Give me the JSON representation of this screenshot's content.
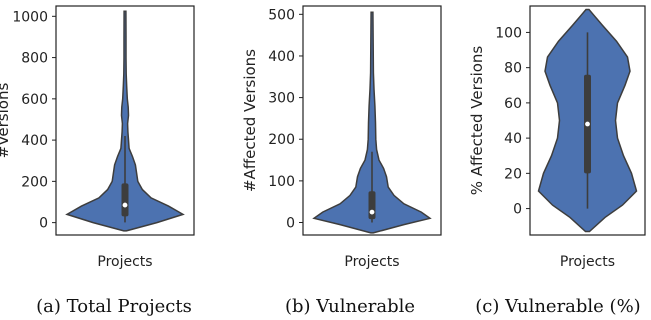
{
  "chart_data": [
    {
      "type": "violin",
      "caption": "(a) Total Projects",
      "xlabel": "Projects",
      "ylabel": "#Versions",
      "ylim": [
        -60,
        1050
      ],
      "yticks": [
        0,
        200,
        400,
        600,
        800,
        1000
      ],
      "range": [
        1,
        1025
      ],
      "box": {
        "q1": 30,
        "median": 85,
        "q3": 190,
        "whisker_low": 1,
        "whisker_high": 420
      },
      "density": [
        [
          -40,
          0.02
        ],
        [
          0,
          0.55
        ],
        [
          40,
          1.0
        ],
        [
          80,
          0.75
        ],
        [
          120,
          0.45
        ],
        [
          160,
          0.3
        ],
        [
          200,
          0.22
        ],
        [
          240,
          0.2
        ],
        [
          280,
          0.18
        ],
        [
          320,
          0.13
        ],
        [
          360,
          0.07
        ],
        [
          400,
          0.06
        ],
        [
          440,
          0.05
        ],
        [
          480,
          0.045
        ],
        [
          520,
          0.06
        ],
        [
          560,
          0.055
        ],
        [
          600,
          0.04
        ],
        [
          660,
          0.03
        ],
        [
          720,
          0.02
        ],
        [
          800,
          0.018
        ],
        [
          900,
          0.017
        ],
        [
          1025,
          0.015
        ]
      ],
      "color": "#4c72b0"
    },
    {
      "type": "violin",
      "caption": "(b) Vulnerable",
      "xlabel": "Projects",
      "ylabel": "#Affected Versions",
      "ylim": [
        -30,
        520
      ],
      "yticks": [
        0,
        100,
        200,
        300,
        400,
        500
      ],
      "range": [
        0,
        505
      ],
      "box": {
        "q1": 8,
        "median": 25,
        "q3": 75,
        "whisker_low": 0,
        "whisker_high": 170
      },
      "density": [
        [
          -25,
          0.02
        ],
        [
          -5,
          0.55
        ],
        [
          10,
          1.0
        ],
        [
          25,
          0.85
        ],
        [
          45,
          0.55
        ],
        [
          65,
          0.38
        ],
        [
          85,
          0.28
        ],
        [
          110,
          0.25
        ],
        [
          130,
          0.2
        ],
        [
          150,
          0.12
        ],
        [
          175,
          0.08
        ],
        [
          200,
          0.065
        ],
        [
          240,
          0.06
        ],
        [
          280,
          0.05
        ],
        [
          320,
          0.035
        ],
        [
          360,
          0.025
        ],
        [
          420,
          0.02
        ],
        [
          505,
          0.015
        ]
      ],
      "color": "#4c72b0"
    },
    {
      "type": "violin",
      "caption": "(c) Vulnerable (%)",
      "xlabel": "Projects",
      "ylabel": "% Affected Versions",
      "ylim": [
        -15,
        115
      ],
      "yticks": [
        0,
        20,
        40,
        60,
        80,
        100
      ],
      "range": [
        -13,
        113
      ],
      "box": {
        "q1": 20,
        "median": 48,
        "q3": 76,
        "whisker_low": 0,
        "whisker_high": 100
      },
      "density": [
        [
          -13,
          0.04
        ],
        [
          -5,
          0.35
        ],
        [
          2,
          0.7
        ],
        [
          10,
          0.98
        ],
        [
          20,
          0.88
        ],
        [
          30,
          0.72
        ],
        [
          40,
          0.6
        ],
        [
          50,
          0.56
        ],
        [
          60,
          0.6
        ],
        [
          70,
          0.75
        ],
        [
          78,
          0.85
        ],
        [
          86,
          0.8
        ],
        [
          95,
          0.58
        ],
        [
          104,
          0.3
        ],
        [
          110,
          0.12
        ],
        [
          113,
          0.03
        ]
      ],
      "color": "#4c72b0"
    }
  ]
}
